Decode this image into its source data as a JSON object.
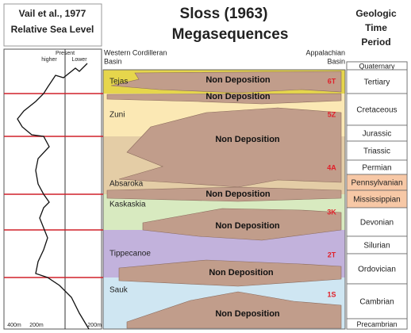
{
  "left_panel": {
    "title": "Vail et al., 1977",
    "subtitle": "Relative Sea Level",
    "present": "Present",
    "higher": "higher",
    "lower": "Lower",
    "scale": [
      "400m",
      "200m",
      "-200m"
    ]
  },
  "header": {
    "title": "Sloss (1963)",
    "subtitle": "Megasequences",
    "left_basin": [
      "Western Cordilleran",
      "Basin"
    ],
    "right_basin": [
      "Appalachian",
      "Basin"
    ],
    "period_header": [
      "Geologic",
      "Time",
      "Period"
    ]
  },
  "sequences": [
    {
      "name": "Tejas",
      "code": "6T"
    },
    {
      "name": "Zuni",
      "code": "5Z"
    },
    {
      "name": "Absaroka",
      "code": "4A"
    },
    {
      "name": "Kaskaskia",
      "code": "3K"
    },
    {
      "name": "Tippecanoe",
      "code": "2T"
    },
    {
      "name": "Sauk",
      "code": "1S"
    }
  ],
  "non_deposition": [
    "Non Deposition",
    "Non Deposition",
    "Non Deposition",
    "Non Deposition",
    "Non Deposition",
    "Non Deposition",
    "Non Deposition"
  ],
  "periods": [
    "Quaternary",
    "Tertiary",
    "Cretaceous",
    "Jurassic",
    "Triassic",
    "Permian",
    "Pennsylvanian",
    "Mississippian",
    "Devonian",
    "Silurian",
    "Ordovician",
    "Cambrian",
    "Precambrian"
  ]
}
